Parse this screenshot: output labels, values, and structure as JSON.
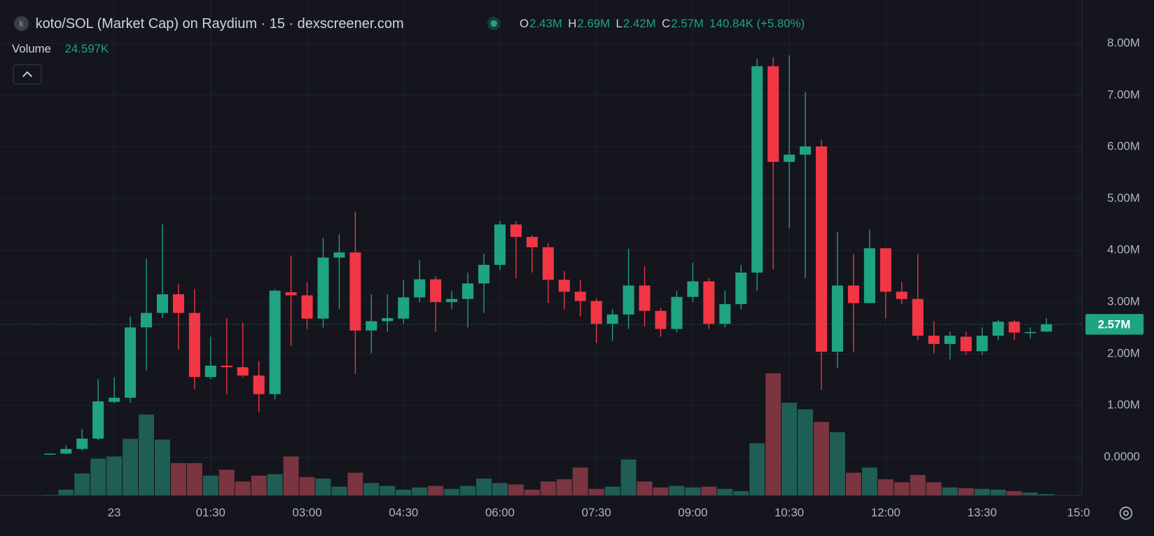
{
  "chart_data": {
    "type": "candlestick",
    "title": "koto/SOL (Market Cap) on Raydium · 15 · dexscreener.com",
    "icon_letter": "k",
    "legend": [
      {
        "key": "O",
        "value": "2.43M"
      },
      {
        "key": "H",
        "value": "2.69M"
      },
      {
        "key": "L",
        "value": "2.42M"
      },
      {
        "key": "C",
        "value": "2.57M"
      }
    ],
    "change": "140.84K (+5.80%)",
    "volume_title": "Volume",
    "volume_label": "24.597K",
    "up_color": "#1fa382",
    "down_color": "#f23645",
    "volume_up_color": "#1f5e55",
    "volume_down_color": "#7b3540",
    "open": [
      0.06,
      0.07,
      0.16,
      0.36,
      1.07,
      1.15,
      2.51,
      2.79,
      3.15,
      2.79,
      1.55,
      1.77,
      1.74,
      1.58,
      1.22,
      3.19,
      3.13,
      2.68,
      3.86,
      3.96,
      2.45,
      2.63,
      2.68,
      3.09,
      3.44,
      3.0,
      3.06,
      3.36,
      3.72,
      4.5,
      4.26,
      4.06,
      3.43,
      3.2,
      3.02,
      2.58,
      2.76,
      3.32,
      2.83,
      2.48,
      3.1,
      3.4,
      2.58,
      2.96,
      3.57,
      7.56,
      5.71,
      5.85,
      6.01,
      2.04,
      3.32,
      2.98,
      4.04,
      3.2,
      3.06,
      2.35,
      2.19,
      2.33,
      2.05,
      2.35,
      2.62,
      2.41,
      2.43
    ],
    "high": [
      0.07,
      0.23,
      0.54,
      1.51,
      1.55,
      2.72,
      3.84,
      4.5,
      3.36,
      3.25,
      2.33,
      2.69,
      2.6,
      1.86,
      3.25,
      3.9,
      3.39,
      4.24,
      4.31,
      4.75,
      3.15,
      3.15,
      3.43,
      3.81,
      3.5,
      3.22,
      3.57,
      3.93,
      4.57,
      4.57,
      4.29,
      4.14,
      3.6,
      3.43,
      3.07,
      2.86,
      4.03,
      3.69,
      2.89,
      3.22,
      3.76,
      3.46,
      3.22,
      3.72,
      7.7,
      7.73,
      7.77,
      7.06,
      6.14,
      4.36,
      3.93,
      4.4,
      4.04,
      3.39,
      3.93,
      2.63,
      2.43,
      2.43,
      2.51,
      2.66,
      2.65,
      2.51,
      2.69
    ],
    "low": [
      0.06,
      0.06,
      0.13,
      0.33,
      1.05,
      1.05,
      1.68,
      2.69,
      2.08,
      1.32,
      1.51,
      1.22,
      1.55,
      0.87,
      1.12,
      2.15,
      2.48,
      2.51,
      2.86,
      1.61,
      2.01,
      2.43,
      2.58,
      3.0,
      2.43,
      2.86,
      2.51,
      2.79,
      3.62,
      3.46,
      3.57,
      2.98,
      2.86,
      2.72,
      2.21,
      2.25,
      2.48,
      2.53,
      2.33,
      2.41,
      3.0,
      2.48,
      2.51,
      2.86,
      3.22,
      3.64,
      4.43,
      3.46,
      1.3,
      1.72,
      2.04,
      2.98,
      2.69,
      2.96,
      2.26,
      2.01,
      1.89,
      1.98,
      1.98,
      2.26,
      2.26,
      2.3,
      2.42
    ],
    "close": [
      0.07,
      0.16,
      0.36,
      1.08,
      1.15,
      2.51,
      2.79,
      3.15,
      2.79,
      1.55,
      1.77,
      1.74,
      1.58,
      1.22,
      3.22,
      3.13,
      2.68,
      3.86,
      3.96,
      2.45,
      2.63,
      2.69,
      3.09,
      3.44,
      3.0,
      3.06,
      3.36,
      3.72,
      4.5,
      4.26,
      4.06,
      3.43,
      3.2,
      3.02,
      2.58,
      2.76,
      3.32,
      2.83,
      2.48,
      3.1,
      3.4,
      2.58,
      2.96,
      3.57,
      7.56,
      5.71,
      5.85,
      6.01,
      2.04,
      3.32,
      2.98,
      4.04,
      3.2,
      3.06,
      2.35,
      2.19,
      2.35,
      2.05,
      2.35,
      2.62,
      2.41,
      2.42,
      2.57
    ],
    "volume": [
      12,
      98,
      369,
      615,
      652,
      947,
      1353,
      935,
      541,
      541,
      332,
      431,
      234,
      332,
      357,
      652,
      308,
      283,
      148,
      381,
      209,
      160,
      98,
      135,
      160,
      111,
      160,
      283,
      209,
      185,
      98,
      234,
      271,
      467,
      111,
      148,
      603,
      234,
      135,
      160,
      135,
      148,
      111,
      74,
      873,
      2042,
      1550,
      1439,
      1230,
      1058,
      381,
      467,
      271,
      221,
      344,
      221,
      135,
      123,
      111,
      98,
      74,
      49,
      24.597
    ],
    "xlim": [
      -3.1,
      64.2
    ],
    "xticks": [
      {
        "value": 4,
        "label": "23"
      },
      {
        "value": 10,
        "label": "01:30"
      },
      {
        "value": 16,
        "label": "03:00"
      },
      {
        "value": 22,
        "label": "04:30"
      },
      {
        "value": 28,
        "label": "06:00"
      },
      {
        "value": 34,
        "label": "07:30"
      },
      {
        "value": 40,
        "label": "09:00"
      },
      {
        "value": 46,
        "label": "10:30"
      },
      {
        "value": 52,
        "label": "12:00"
      },
      {
        "value": 58,
        "label": "13:30"
      },
      {
        "value": 64,
        "label": "15:0"
      }
    ],
    "ylim": [
      -0.74,
      8.84
    ],
    "yticks": [
      {
        "value": 0,
        "label": "0.0000"
      },
      {
        "value": 1,
        "label": "1.00M"
      },
      {
        "value": 2,
        "label": "2.00M"
      },
      {
        "value": 3,
        "label": "3.00M"
      },
      {
        "value": 4,
        "label": "4.00M"
      },
      {
        "value": 5,
        "label": "5.00M"
      },
      {
        "value": 6,
        "label": "6.00M"
      },
      {
        "value": 7,
        "label": "7.00M"
      },
      {
        "value": 8,
        "label": "8.00M"
      }
    ],
    "last_price": {
      "value": 2.57,
      "label": "2.57M"
    },
    "grid": true
  }
}
